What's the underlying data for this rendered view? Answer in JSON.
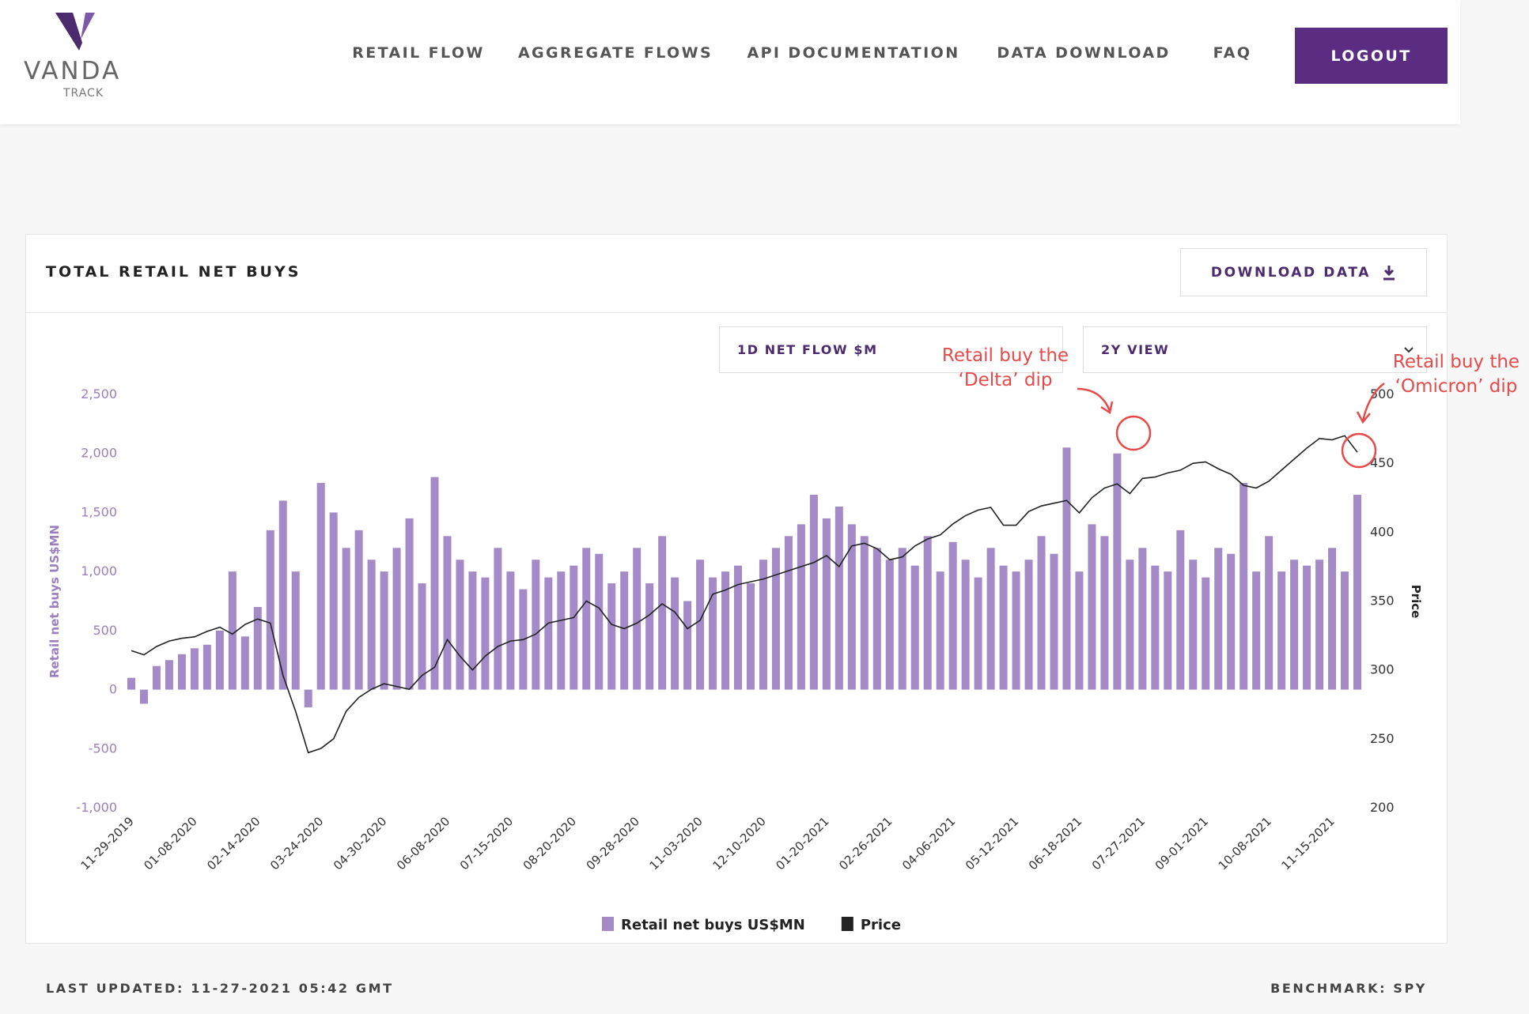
{
  "logo": {
    "name": "VANDA",
    "sub": "TRACK"
  },
  "nav": [
    "RETAIL FLOW",
    "AGGREGATE FLOWS",
    "API DOCUMENTATION",
    "DATA DOWNLOAD",
    "FAQ"
  ],
  "logout": "LOGOUT",
  "panel": {
    "title": "TOTAL RETAIL NET BUYS",
    "download": "DOWNLOAD DATA",
    "dropdowns": [
      "1D NET FLOW $M",
      "2Y VIEW"
    ]
  },
  "footer": {
    "updated": "LAST UPDATED: 11-27-2021 05:42 GMT",
    "benchmark": "BENCHMARK: SPY"
  },
  "chart_data": {
    "type": "bar_line",
    "ylabel": "Retail net buys US$MN",
    "y2label": "Price",
    "annotations": [
      {
        "lines": [
          "Retail buy the",
          "‘Delta’ dip"
        ]
      },
      {
        "lines": [
          "Retail buy the",
          "‘Omicron’ dip"
        ]
      }
    ],
    "categories": [
      "11-29-2019",
      null,
      null,
      null,
      null,
      "01-08-2020",
      null,
      null,
      null,
      null,
      "02-14-2020",
      null,
      null,
      null,
      null,
      "03-24-2020",
      null,
      null,
      null,
      null,
      "04-30-2020",
      null,
      null,
      null,
      null,
      "06-08-2020",
      null,
      null,
      null,
      null,
      "07-15-2020",
      null,
      null,
      null,
      null,
      "08-20-2020",
      null,
      null,
      null,
      null,
      "09-28-2020",
      null,
      null,
      null,
      null,
      "11-03-2020",
      null,
      null,
      null,
      null,
      "12-10-2020",
      null,
      null,
      null,
      null,
      "01-20-2021",
      null,
      null,
      null,
      null,
      "02-26-2021",
      null,
      null,
      null,
      null,
      "04-06-2021",
      null,
      null,
      null,
      null,
      "05-12-2021",
      null,
      null,
      null,
      null,
      "06-18-2021",
      null,
      null,
      null,
      null,
      "07-27-2021",
      null,
      null,
      null,
      null,
      "09-01-2021",
      null,
      null,
      null,
      null,
      "10-08-2021",
      null,
      null,
      null,
      null,
      "11-15-2021",
      null,
      null
    ],
    "series": [
      {
        "name": "Retail net buys US$MN",
        "color": "#a48bc8",
        "values": [
          100,
          -120,
          200,
          250,
          300,
          350,
          380,
          500,
          1000,
          450,
          700,
          1350,
          1600,
          1000,
          -150,
          1750,
          1500,
          1200,
          1350,
          1100,
          1000,
          1200,
          1450,
          900,
          1800,
          1300,
          1100,
          1000,
          950,
          1200,
          1000,
          850,
          1100,
          950,
          1000,
          1050,
          1200,
          1150,
          900,
          1000,
          1200,
          900,
          1300,
          950,
          750,
          1100,
          950,
          1000,
          1050,
          900,
          1100,
          1200,
          1300,
          1400,
          1650,
          1450,
          1550,
          1400,
          1300,
          1200,
          1100,
          1200,
          1050,
          1300,
          1000,
          1250,
          1100,
          950,
          1200,
          1050,
          1000,
          1100,
          1300,
          1150,
          2050,
          1000,
          1400,
          1300,
          2000,
          1100,
          1200,
          1050,
          1000,
          1350,
          1100,
          950,
          1200,
          1150,
          1750,
          1000,
          1300,
          1000,
          1100,
          1050,
          1100,
          1200,
          1000,
          1650
        ]
      },
      {
        "name": "Price",
        "color": "#222222",
        "axis": "y2",
        "values": [
          314,
          311,
          317,
          321,
          323,
          324,
          328,
          331,
          326,
          333,
          337,
          334,
          296,
          270,
          240,
          243,
          250,
          270,
          280,
          286,
          290,
          288,
          286,
          296,
          302,
          322,
          310,
          300,
          310,
          317,
          321,
          322,
          326,
          334,
          336,
          338,
          350,
          345,
          333,
          330,
          334,
          340,
          348,
          342,
          330,
          336,
          355,
          358,
          362,
          364,
          366,
          369,
          372,
          375,
          378,
          383,
          375,
          390,
          392,
          388,
          380,
          382,
          390,
          395,
          398,
          406,
          412,
          416,
          418,
          405,
          405,
          415,
          419,
          421,
          423,
          414,
          425,
          432,
          435,
          428,
          439,
          440,
          443,
          445,
          450,
          451,
          446,
          442,
          434,
          432,
          437,
          445,
          453,
          461,
          468,
          467,
          470,
          458
        ]
      }
    ],
    "ylim": [
      -1000,
      2500
    ],
    "yticks": [
      {
        "value": -1000,
        "label": "-1,000"
      },
      -500,
      0,
      500,
      {
        "value": 1000,
        "label": "1,000"
      },
      {
        "value": 1500,
        "label": "1,500"
      },
      {
        "value": 2000,
        "label": "2,000"
      },
      {
        "value": 2500,
        "label": "2,500"
      }
    ],
    "y2lim": [
      200,
      500
    ],
    "y2ticks": [
      200,
      250,
      300,
      350,
      400,
      450,
      500
    ],
    "legend": "bottom"
  }
}
